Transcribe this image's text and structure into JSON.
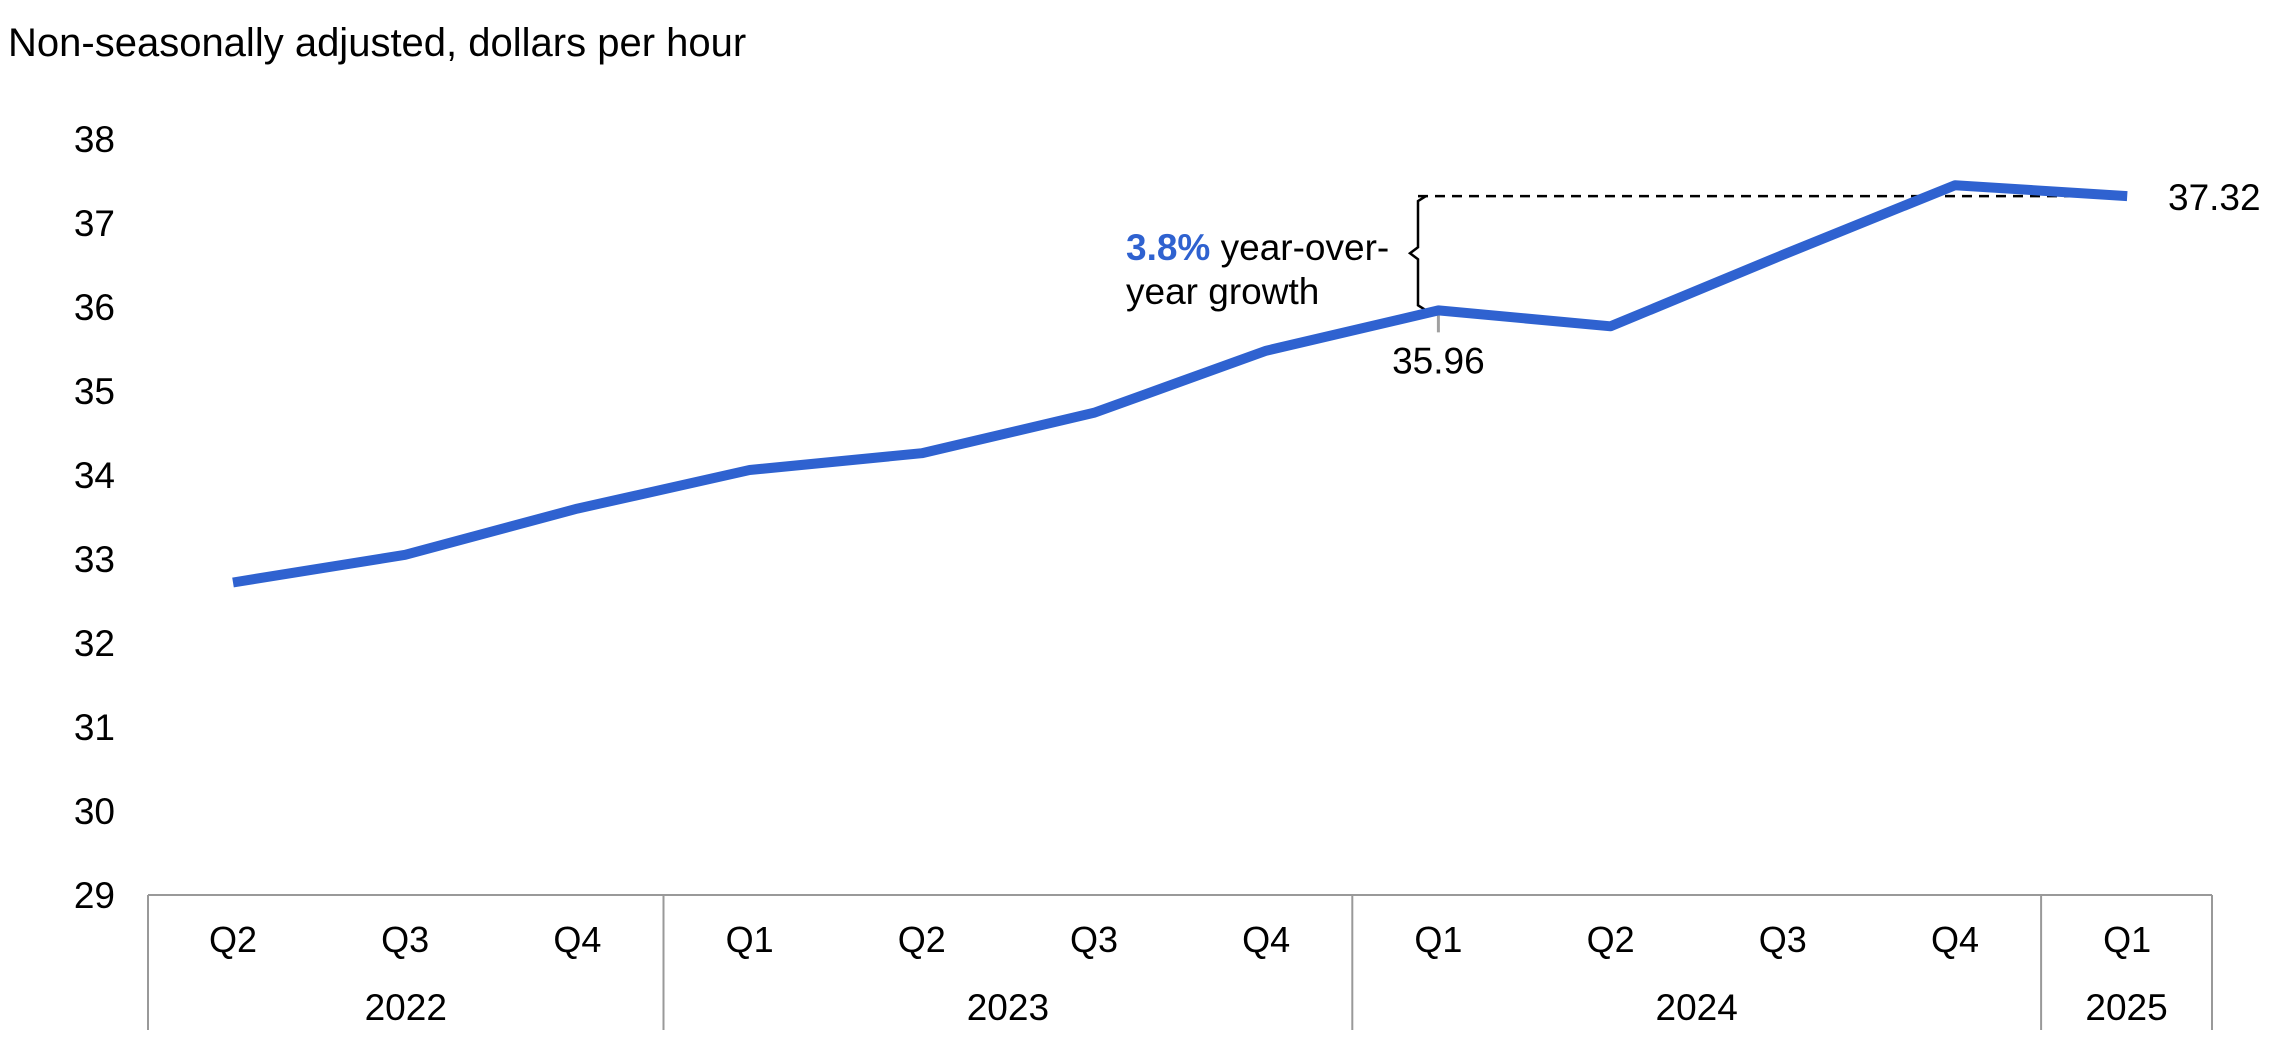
{
  "chart_data": {
    "type": "line",
    "subtitle": "Non-seasonally adjusted, dollars per hour",
    "ylim": [
      29,
      38
    ],
    "yticks": [
      29,
      30,
      31,
      32,
      33,
      34,
      35,
      36,
      37,
      38
    ],
    "x": [
      {
        "quarter": "Q2",
        "year": "2022"
      },
      {
        "quarter": "Q3",
        "year": "2022"
      },
      {
        "quarter": "Q4",
        "year": "2022"
      },
      {
        "quarter": "Q1",
        "year": "2023"
      },
      {
        "quarter": "Q2",
        "year": "2023"
      },
      {
        "quarter": "Q3",
        "year": "2023"
      },
      {
        "quarter": "Q4",
        "year": "2023"
      },
      {
        "quarter": "Q1",
        "year": "2024"
      },
      {
        "quarter": "Q2",
        "year": "2024"
      },
      {
        "quarter": "Q3",
        "year": "2024"
      },
      {
        "quarter": "Q4",
        "year": "2024"
      },
      {
        "quarter": "Q1",
        "year": "2025"
      }
    ],
    "years": [
      "2022",
      "2023",
      "2024",
      "2025"
    ],
    "series": [
      {
        "color": "#2f62d0",
        "values": [
          32.72,
          33.05,
          33.6,
          34.06,
          34.26,
          34.74,
          35.48,
          35.96,
          35.77,
          36.62,
          37.45,
          37.32
        ]
      }
    ],
    "grid": false,
    "legend": "none",
    "annotations": {
      "point_label_low": {
        "value": "35.96",
        "index": 7
      },
      "point_label_high": {
        "value": "37.32",
        "index": 11
      },
      "growth_pct": "3.8%",
      "growth_text_line1": "year-over-",
      "growth_text_line2": "year growth",
      "growth_color": "#2f62d0"
    }
  }
}
